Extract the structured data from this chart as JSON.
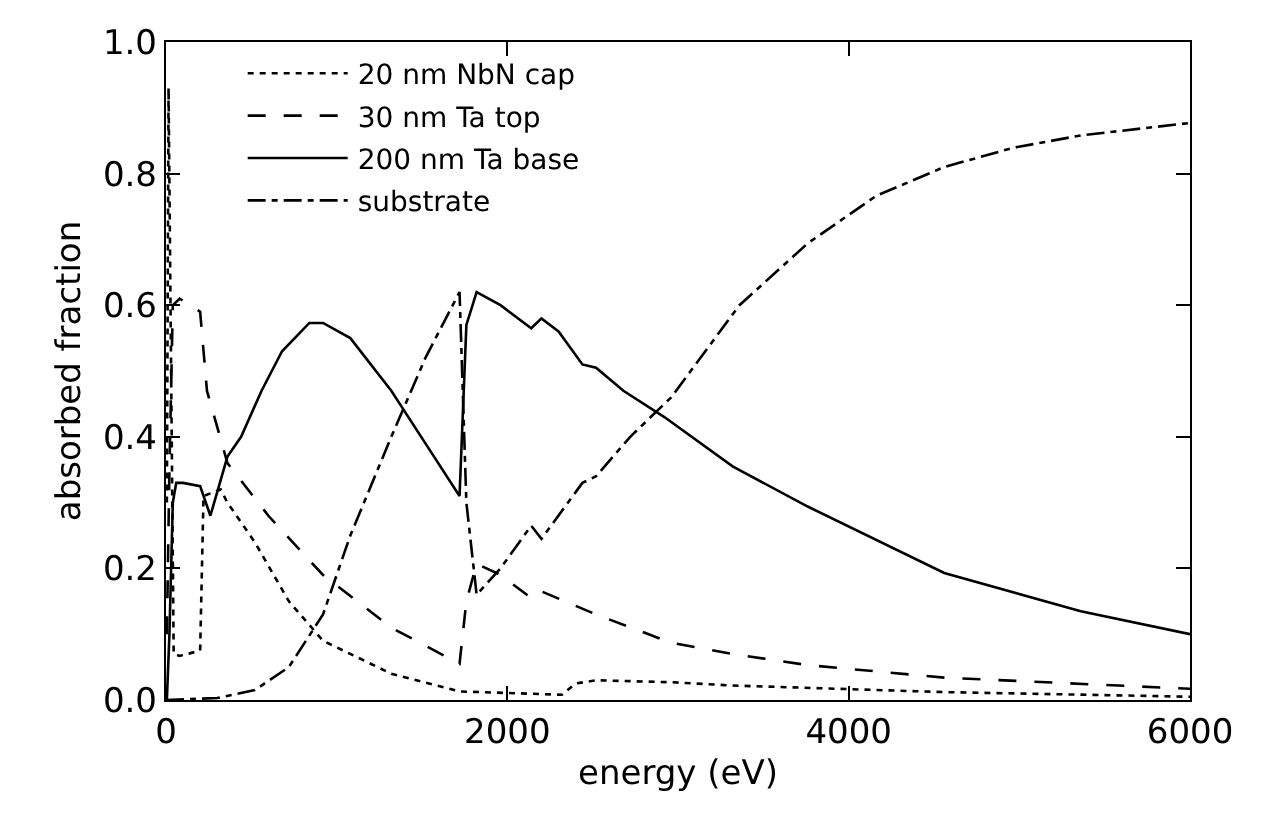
{
  "chart_data": {
    "type": "line",
    "xlabel": "energy (eV)",
    "ylabel": "absorbed fraction",
    "xlim": [
      0,
      6000
    ],
    "ylim": [
      0,
      1
    ],
    "xticks": [
      0,
      2000,
      4000,
      6000
    ],
    "yticks": [
      {
        "value": 0,
        "label": "0.0"
      },
      {
        "value": 0.2,
        "label": "0.2"
      },
      {
        "value": 0.4,
        "label": "0.4"
      },
      {
        "value": 0.6,
        "label": "0.6"
      },
      {
        "value": 0.8,
        "label": "0.8"
      },
      {
        "value": 1,
        "label": "1.0"
      }
    ],
    "legend": "top left",
    "marker": "none",
    "series": [
      {
        "name": "20 nm NbN cap",
        "color": "#000000",
        "line_style": "dotted",
        "x": [
          5,
          15,
          30,
          45,
          80,
          200,
          220,
          320,
          360,
          520,
          720,
          920,
          1320,
          1720,
          2320,
          2400,
          2520,
          2960,
          3320,
          4560,
          6000
        ],
        "values": [
          0.3,
          0.93,
          0.5,
          0.07,
          0.067,
          0.075,
          0.31,
          0.32,
          0.3,
          0.24,
          0.15,
          0.09,
          0.04,
          0.013,
          0.008,
          0.025,
          0.03,
          0.027,
          0.022,
          0.012,
          0.005
        ]
      },
      {
        "name": "30 nm Ta top",
        "color": "#000000",
        "line_style": "dashed",
        "x": [
          5,
          20,
          40,
          80,
          200,
          240,
          360,
          600,
          920,
          1320,
          1720,
          1760,
          1820,
          1960,
          2140,
          2200,
          2520,
          2960,
          3320,
          3760,
          4560,
          6000
        ],
        "values": [
          0.1,
          0.35,
          0.6,
          0.61,
          0.59,
          0.47,
          0.36,
          0.28,
          0.19,
          0.11,
          0.055,
          0.15,
          0.207,
          0.19,
          0.155,
          0.165,
          0.13,
          0.087,
          0.07,
          0.053,
          0.034,
          0.017
        ]
      },
      {
        "name": "200 nm Ta base",
        "color": "#000000",
        "line_style": "solid",
        "x": [
          5,
          20,
          40,
          60,
          100,
          200,
          260,
          360,
          440,
          560,
          680,
          840,
          920,
          1080,
          1320,
          1520,
          1720,
          1760,
          1820,
          1960,
          2140,
          2200,
          2300,
          2440,
          2520,
          2680,
          2920,
          3320,
          3760,
          4560,
          5360,
          6000
        ],
        "values": [
          0.0,
          0.1,
          0.3,
          0.33,
          0.33,
          0.325,
          0.28,
          0.37,
          0.4,
          0.47,
          0.53,
          0.573,
          0.573,
          0.55,
          0.47,
          0.39,
          0.31,
          0.57,
          0.62,
          0.6,
          0.565,
          0.58,
          0.56,
          0.51,
          0.505,
          0.47,
          0.43,
          0.355,
          0.294,
          0.193,
          0.135,
          0.1
        ]
      },
      {
        "name": "substrate",
        "color": "#000000",
        "line_style": "dashdot",
        "x": [
          0,
          300,
          520,
          720,
          920,
          1080,
          1320,
          1520,
          1720,
          1760,
          1820,
          1960,
          2140,
          2200,
          2440,
          2520,
          2720,
          2960,
          3360,
          3760,
          4160,
          4560,
          4960,
          5360,
          6000
        ],
        "values": [
          0.0,
          0.003,
          0.015,
          0.05,
          0.13,
          0.25,
          0.4,
          0.52,
          0.62,
          0.3,
          0.16,
          0.2,
          0.265,
          0.245,
          0.33,
          0.34,
          0.4,
          0.46,
          0.6,
          0.694,
          0.766,
          0.81,
          0.839,
          0.858,
          0.877
        ]
      }
    ]
  }
}
